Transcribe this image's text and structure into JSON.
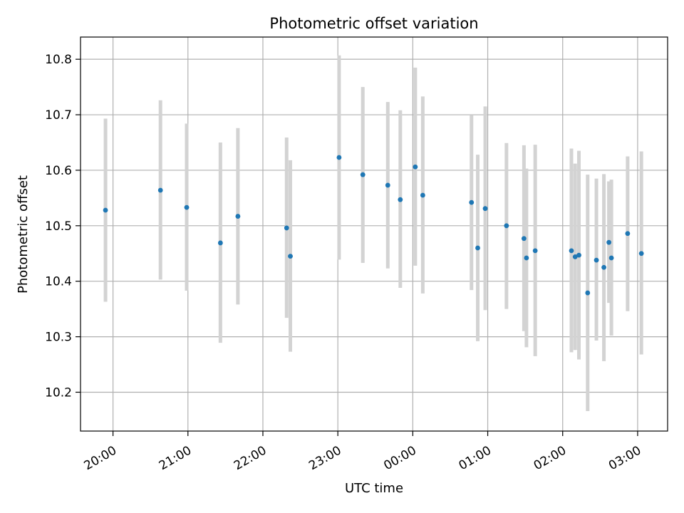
{
  "chart_data": {
    "type": "scatter",
    "title": "Photometric offset variation",
    "xlabel": "UTC time",
    "ylabel": "Photometric offset",
    "grid": true,
    "x_axis": {
      "kind": "time",
      "range": [
        "19:34",
        "03:24"
      ],
      "ticks": [
        "20:00",
        "21:00",
        "22:00",
        "23:00",
        "00:00",
        "01:00",
        "02:00",
        "03:00"
      ]
    },
    "y_axis": {
      "range": [
        10.13,
        10.84
      ],
      "ticks": [
        "10.2",
        "10.3",
        "10.4",
        "10.5",
        "10.6",
        "10.7",
        "10.8"
      ]
    },
    "colors": {
      "point": "#1f77b4",
      "errorbar": "#d3d3d3",
      "grid": "#b0b0b0",
      "frame": "#000000"
    },
    "points": [
      {
        "x": "19:54",
        "y": 10.528,
        "err_low": 10.363,
        "err_high": 10.693
      },
      {
        "x": "20:38",
        "y": 10.564,
        "err_low": 10.403,
        "err_high": 10.726
      },
      {
        "x": "20:59",
        "y": 10.533,
        "err_low": 10.383,
        "err_high": 10.684
      },
      {
        "x": "21:26",
        "y": 10.469,
        "err_low": 10.289,
        "err_high": 10.65
      },
      {
        "x": "21:40",
        "y": 10.517,
        "err_low": 10.358,
        "err_high": 10.676
      },
      {
        "x": "22:19",
        "y": 10.496,
        "err_low": 10.334,
        "err_high": 10.659
      },
      {
        "x": "22:22",
        "y": 10.445,
        "err_low": 10.273,
        "err_high": 10.618
      },
      {
        "x": "23:01",
        "y": 10.623,
        "err_low": 10.439,
        "err_high": 10.807
      },
      {
        "x": "23:20",
        "y": 10.592,
        "err_low": 10.433,
        "err_high": 10.75
      },
      {
        "x": "23:40",
        "y": 10.573,
        "err_low": 10.423,
        "err_high": 10.723
      },
      {
        "x": "23:50",
        "y": 10.547,
        "err_low": 10.388,
        "err_high": 10.708
      },
      {
        "x": "00:02",
        "y": 10.606,
        "err_low": 10.428,
        "err_high": 10.785
      },
      {
        "x": "00:08",
        "y": 10.555,
        "err_low": 10.378,
        "err_high": 10.733
      },
      {
        "x": "00:47",
        "y": 10.542,
        "err_low": 10.384,
        "err_high": 10.699
      },
      {
        "x": "00:52",
        "y": 10.46,
        "err_low": 10.292,
        "err_high": 10.628
      },
      {
        "x": "00:58",
        "y": 10.531,
        "err_low": 10.348,
        "err_high": 10.715
      },
      {
        "x": "01:15",
        "y": 10.5,
        "err_low": 10.35,
        "err_high": 10.649
      },
      {
        "x": "01:29",
        "y": 10.477,
        "err_low": 10.31,
        "err_high": 10.645
      },
      {
        "x": "01:31",
        "y": 10.442,
        "err_low": 10.281,
        "err_high": 10.603
      },
      {
        "x": "01:38",
        "y": 10.455,
        "err_low": 10.265,
        "err_high": 10.646
      },
      {
        "x": "02:07",
        "y": 10.455,
        "err_low": 10.272,
        "err_high": 10.639
      },
      {
        "x": "02:10",
        "y": 10.444,
        "err_low": 10.276,
        "err_high": 10.612
      },
      {
        "x": "02:13",
        "y": 10.447,
        "err_low": 10.259,
        "err_high": 10.635
      },
      {
        "x": "02:20",
        "y": 10.379,
        "err_low": 10.166,
        "err_high": 10.592
      },
      {
        "x": "02:27",
        "y": 10.438,
        "err_low": 10.293,
        "err_high": 10.585
      },
      {
        "x": "02:33",
        "y": 10.425,
        "err_low": 10.256,
        "err_high": 10.593
      },
      {
        "x": "02:37",
        "y": 10.47,
        "err_low": 10.361,
        "err_high": 10.58
      },
      {
        "x": "02:39",
        "y": 10.442,
        "err_low": 10.302,
        "err_high": 10.583
      },
      {
        "x": "02:52",
        "y": 10.486,
        "err_low": 10.346,
        "err_high": 10.625
      },
      {
        "x": "03:03",
        "y": 10.45,
        "err_low": 10.268,
        "err_high": 10.634
      }
    ]
  }
}
